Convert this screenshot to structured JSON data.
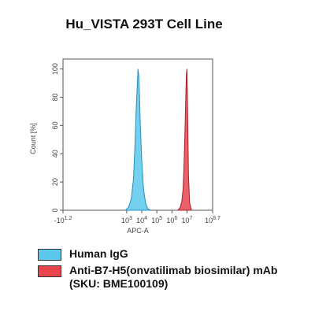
{
  "chart_data": {
    "type": "histogram-overlay",
    "title": "Hu_VISTA 293T Cell Line",
    "xlabel": "APC-A",
    "ylabel": "Count [%]",
    "xscale": "biexponential",
    "xlim": [
      -15.85,
      501187234
    ],
    "ylim": [
      0,
      107
    ],
    "xticks": [
      {
        "value": -15.85,
        "label": "-10",
        "exp": "1.2"
      },
      {
        "value": 1000,
        "label": "10",
        "exp": "3"
      },
      {
        "value": 10000,
        "label": "10",
        "exp": "4"
      },
      {
        "value": 100000,
        "label": "10",
        "exp": "5"
      },
      {
        "value": 1000000,
        "label": "10",
        "exp": "6"
      },
      {
        "value": 10000000,
        "label": "10",
        "exp": "7"
      },
      {
        "value": 501187234,
        "label": "10",
        "exp": "8.7"
      }
    ],
    "yticks": [
      0,
      20,
      40,
      60,
      80,
      100
    ],
    "series": [
      {
        "name": "Human IgG",
        "color": "#5bc8ec",
        "edge": "#2a8fbf",
        "x": [
          800,
          1300,
          2000,
          2800,
          3500,
          4200,
          5000,
          5600,
          6300,
          7100,
          8000,
          10000,
          13000,
          18000,
          25000,
          40000
        ],
        "values": [
          0,
          2,
          8,
          22,
          45,
          70,
          88,
          100,
          95,
          80,
          60,
          35,
          15,
          5,
          1,
          0
        ]
      },
      {
        "name": "Anti-B7-H5(onvatilimab biosimilar) mAb (SKU: BME100109)",
        "color": "#e8454f",
        "edge": "#a8202a",
        "x": [
          2500000,
          3500000,
          4500000,
          5500000,
          6500000,
          7500000,
          8500000,
          9200000,
          10000000,
          11000000,
          12500000,
          15000000,
          20000000
        ],
        "values": [
          0,
          2,
          6,
          15,
          35,
          60,
          85,
          97,
          100,
          70,
          25,
          5,
          0
        ]
      }
    ]
  }
}
